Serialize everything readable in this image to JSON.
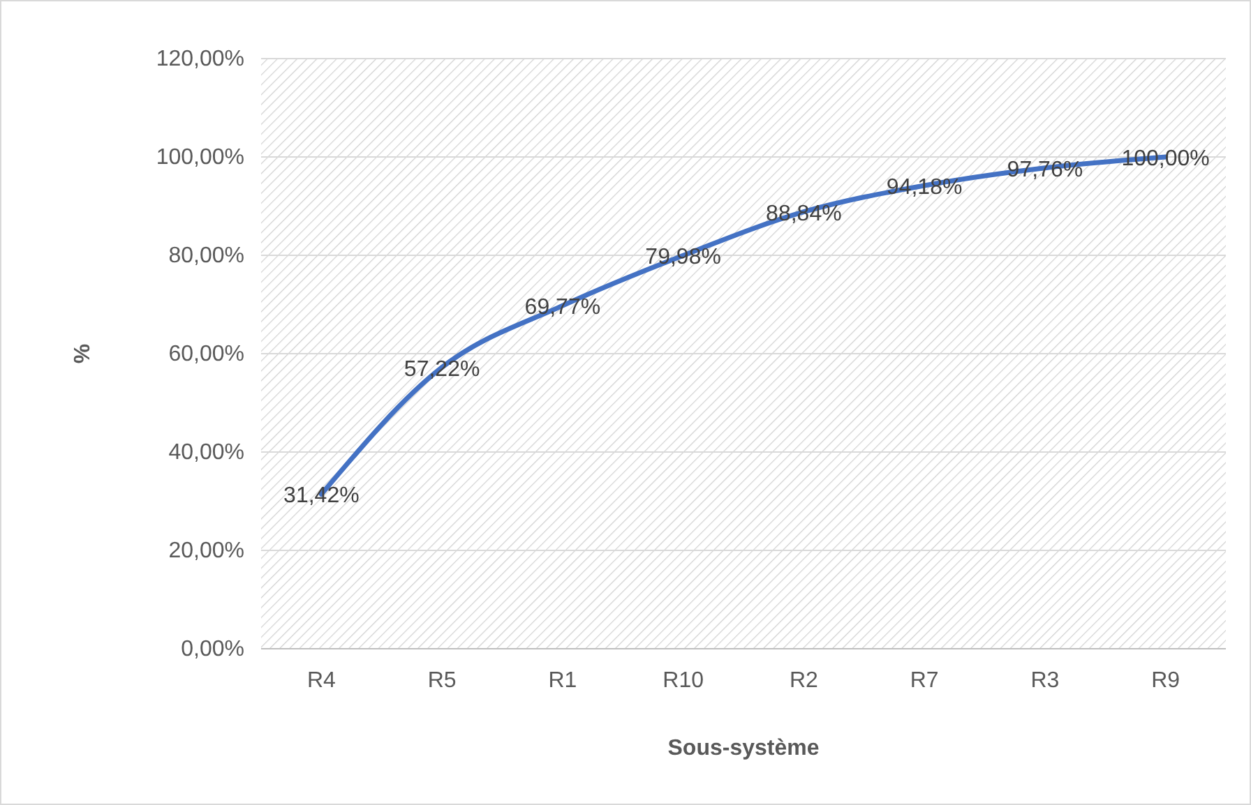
{
  "chart_data": {
    "type": "line",
    "xlabel": "Sous-système",
    "ylabel": "%",
    "categories": [
      "R4",
      "R5",
      "R1",
      "R10",
      "R2",
      "R7",
      "R3",
      "R9"
    ],
    "series": [
      {
        "color": "#4472c4",
        "values": [
          31.42,
          57.22,
          69.77,
          79.98,
          88.84,
          94.18,
          97.76,
          100.0
        ],
        "value_labels": [
          "31,42%",
          "57,22%",
          "69,77%",
          "79,98%",
          "88,84%",
          "94,18%",
          "97,76%",
          "100,00%"
        ]
      }
    ],
    "ylim": [
      0,
      120
    ],
    "yticks": [
      {
        "value": 0,
        "label": "0,00%"
      },
      {
        "value": 20,
        "label": "20,00%"
      },
      {
        "value": 40,
        "label": "40,00%"
      },
      {
        "value": 60,
        "label": "60,00%"
      },
      {
        "value": 80,
        "label": "80,00%"
      },
      {
        "value": 100,
        "label": "100,00%"
      },
      {
        "value": 120,
        "label": "120,00%"
      }
    ],
    "grid": "y",
    "marker": "none",
    "line_style": "solid"
  }
}
